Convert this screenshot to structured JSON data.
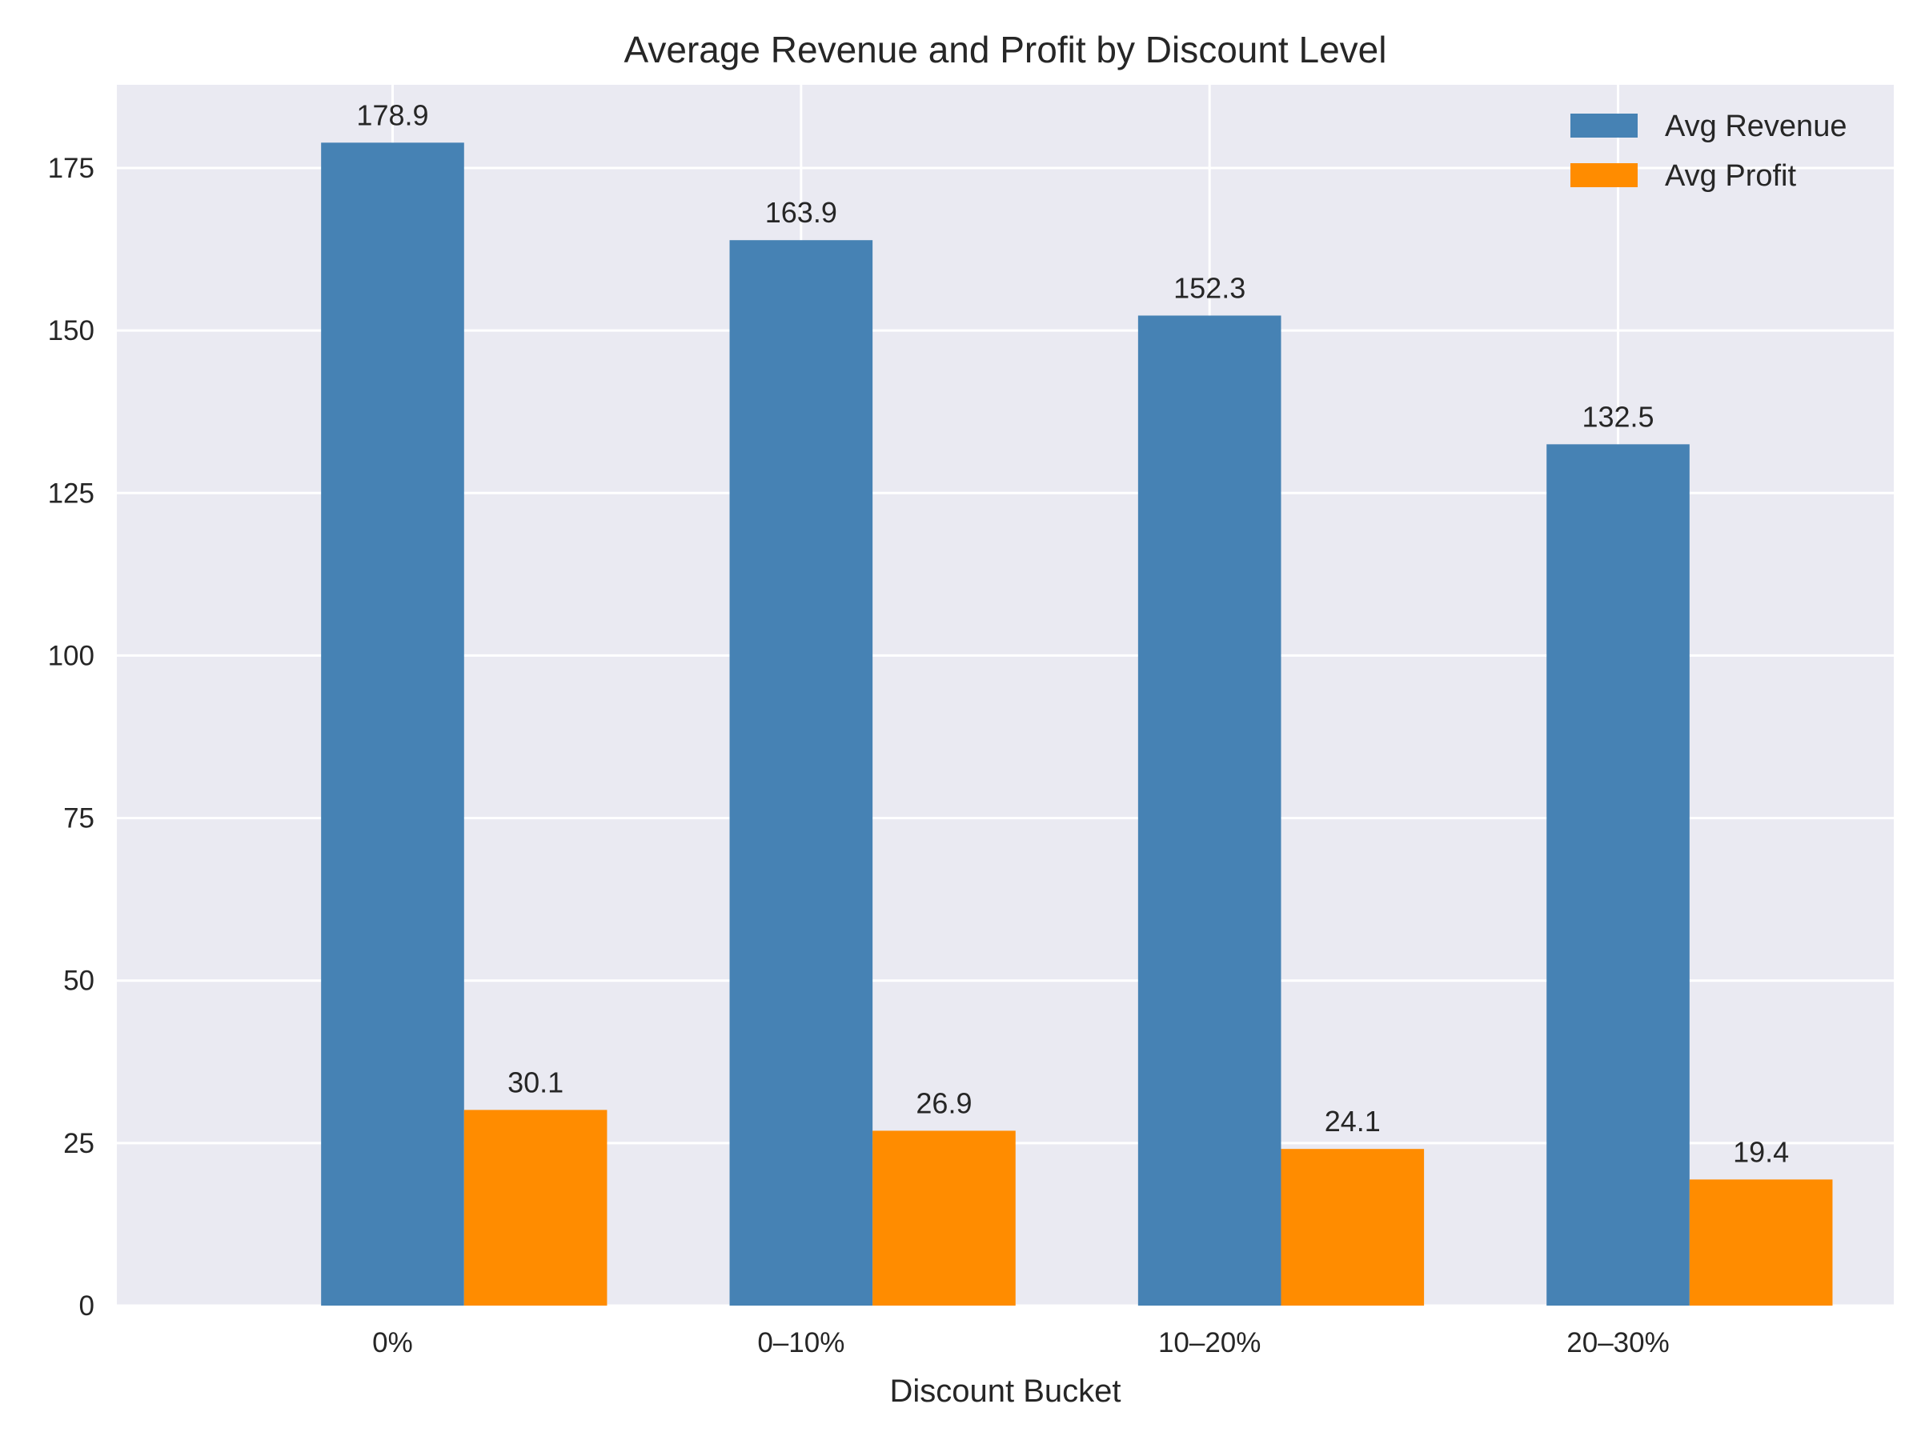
{
  "chart_data": {
    "type": "bar",
    "title": "Average Revenue and Profit by Discount Level",
    "xlabel": "Discount Bucket",
    "ylabel": "",
    "categories": [
      "0%",
      "0–10%",
      "10–20%",
      "20–30%"
    ],
    "series": [
      {
        "name": "Avg Revenue",
        "color": "#4682b4",
        "values": [
          178.9,
          163.9,
          152.3,
          132.5
        ]
      },
      {
        "name": "Avg Profit",
        "color": "#ff8c00",
        "values": [
          30.1,
          26.9,
          24.1,
          19.4
        ]
      }
    ],
    "yticks": [
      0,
      25,
      50,
      75,
      100,
      125,
      150,
      175
    ],
    "ylim": [
      0,
      187.8
    ],
    "grid": true,
    "legend_position": "top-right",
    "background": "#eaeaf2"
  }
}
